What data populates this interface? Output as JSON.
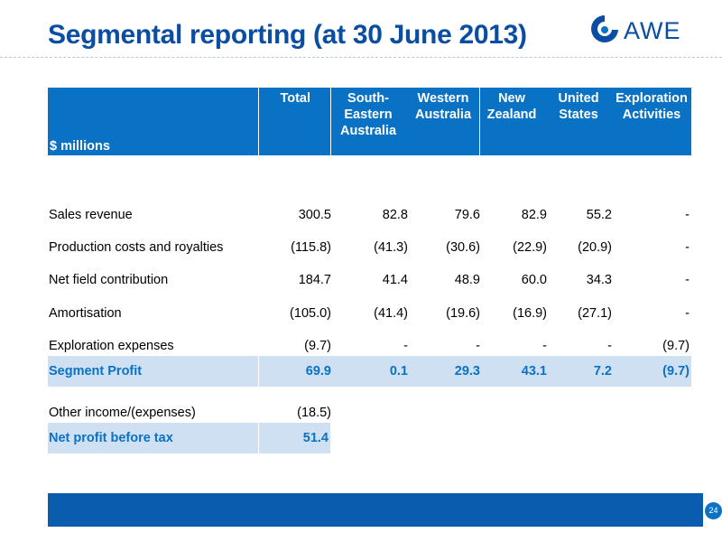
{
  "slide": {
    "title": "Segmental reporting (at 30 June 2013)",
    "logo_text": "AWE",
    "page_number": "24"
  },
  "table": {
    "units_label": "$ millions",
    "columns": [
      {
        "line1": "Total",
        "line2": "",
        "line3": ""
      },
      {
        "line1": "South-",
        "line2": "Eastern",
        "line3": "Australia"
      },
      {
        "line1": "Western",
        "line2": "Australia",
        "line3": ""
      },
      {
        "line1": "New",
        "line2": "Zealand",
        "line3": ""
      },
      {
        "line1": "United",
        "line2": "States",
        "line3": ""
      },
      {
        "line1": "Exploration",
        "line2": "Activities",
        "line3": ""
      }
    ],
    "rows": [
      {
        "label": "Sales revenue",
        "values": [
          "300.5",
          "82.8",
          "79.6",
          "82.9",
          "55.2",
          "-"
        ]
      },
      {
        "label": "Production costs and royalties",
        "values": [
          "(115.8)",
          "(41.3)",
          "(30.6)",
          "(22.9)",
          "(20.9)",
          "-"
        ]
      },
      {
        "label": "Net field contribution",
        "values": [
          "184.7",
          "41.4",
          "48.9",
          "60.0",
          "34.3",
          "-"
        ]
      },
      {
        "label": "Amortisation",
        "values": [
          "(105.0)",
          "(41.4)",
          "(19.6)",
          "(16.9)",
          "(27.1)",
          "-"
        ]
      },
      {
        "label": "Exploration expenses",
        "values": [
          "(9.7)",
          "-",
          "-",
          "-",
          "-",
          "(9.7)"
        ]
      },
      {
        "label": "Segment Profit",
        "values": [
          "69.9",
          "0.1",
          "29.3",
          "43.1",
          "7.2",
          "(9.7)"
        ]
      },
      {
        "label": "Other income/(expenses)",
        "values": [
          "(18.5)"
        ]
      },
      {
        "label": "Net profit before tax",
        "values": [
          "51.4"
        ]
      }
    ]
  },
  "colors": {
    "title": "#0a4ea3",
    "header_bg": "#0a72c4",
    "highlight_bg": "#cfe0f3",
    "highlight_text": "#0a72c4",
    "footer_bar": "#0a5cae"
  }
}
